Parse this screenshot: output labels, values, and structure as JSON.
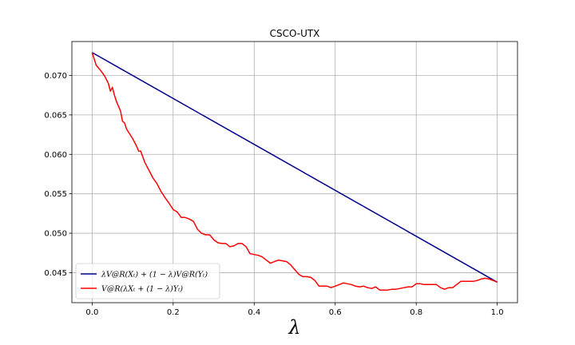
{
  "chart_data": {
    "type": "line",
    "title": "CSCO-UTX",
    "xlabel": "λ",
    "ylabel": "",
    "xlim": [
      -0.05,
      1.05
    ],
    "ylim": [
      0.0412,
      0.0743
    ],
    "xticks": [
      0.0,
      0.2,
      0.4,
      0.6,
      0.8,
      1.0
    ],
    "xtick_labels": [
      "0.0",
      "0.2",
      "0.4",
      "0.6",
      "0.8",
      "1.0"
    ],
    "yticks": [
      0.045,
      0.05,
      0.055,
      0.06,
      0.065,
      0.07
    ],
    "ytick_labels": [
      "0.045",
      "0.050",
      "0.055",
      "0.060",
      "0.065",
      "0.070"
    ],
    "grid": true,
    "legend_position": "lower-left",
    "series": [
      {
        "name": "λV@R(Xₜ) + (1 − λ)V@R(Yₜ)",
        "color": "#00008b",
        "x": [
          0.0,
          1.0
        ],
        "y": [
          0.0729,
          0.0438
        ]
      },
      {
        "name": "V@R(λXₜ + (1 − λ)Yₜ)",
        "color": "#ff0000",
        "x": [
          0.0,
          0.01,
          0.02,
          0.03,
          0.04,
          0.045,
          0.05,
          0.055,
          0.06,
          0.07,
          0.075,
          0.08,
          0.085,
          0.09,
          0.1,
          0.11,
          0.115,
          0.12,
          0.13,
          0.14,
          0.15,
          0.16,
          0.17,
          0.18,
          0.19,
          0.2,
          0.21,
          0.22,
          0.23,
          0.24,
          0.25,
          0.26,
          0.27,
          0.28,
          0.29,
          0.3,
          0.31,
          0.32,
          0.33,
          0.34,
          0.35,
          0.36,
          0.37,
          0.38,
          0.39,
          0.4,
          0.41,
          0.42,
          0.43,
          0.44,
          0.45,
          0.46,
          0.47,
          0.48,
          0.49,
          0.5,
          0.51,
          0.52,
          0.53,
          0.54,
          0.55,
          0.56,
          0.57,
          0.58,
          0.59,
          0.6,
          0.61,
          0.62,
          0.63,
          0.64,
          0.65,
          0.66,
          0.67,
          0.68,
          0.69,
          0.7,
          0.71,
          0.72,
          0.73,
          0.74,
          0.75,
          0.76,
          0.77,
          0.78,
          0.79,
          0.8,
          0.81,
          0.82,
          0.83,
          0.84,
          0.85,
          0.86,
          0.87,
          0.88,
          0.89,
          0.9,
          0.91,
          0.92,
          0.93,
          0.94,
          0.95,
          0.96,
          0.97,
          0.98,
          0.99,
          1.0
        ],
        "y": [
          0.0729,
          0.0713,
          0.0707,
          0.07,
          0.069,
          0.068,
          0.0685,
          0.0675,
          0.0667,
          0.0655,
          0.0642,
          0.064,
          0.0632,
          0.0628,
          0.062,
          0.061,
          0.0604,
          0.0604,
          0.059,
          0.058,
          0.057,
          0.0563,
          0.0553,
          0.0545,
          0.0538,
          0.053,
          0.0527,
          0.052,
          0.052,
          0.0518,
          0.0515,
          0.0505,
          0.05,
          0.0498,
          0.0498,
          0.0492,
          0.0488,
          0.0487,
          0.0487,
          0.0483,
          0.0484,
          0.0487,
          0.0487,
          0.0483,
          0.0474,
          0.0473,
          0.0472,
          0.047,
          0.0466,
          0.0462,
          0.0464,
          0.0466,
          0.0465,
          0.0464,
          0.046,
          0.0454,
          0.0448,
          0.0445,
          0.0445,
          0.0444,
          0.044,
          0.0433,
          0.0433,
          0.0433,
          0.0431,
          0.0433,
          0.0435,
          0.0437,
          0.0436,
          0.0435,
          0.0433,
          0.0432,
          0.0433,
          0.0431,
          0.043,
          0.0432,
          0.0428,
          0.0428,
          0.0428,
          0.0429,
          0.0429,
          0.043,
          0.0431,
          0.0432,
          0.0432,
          0.0436,
          0.0436,
          0.0435,
          0.0435,
          0.0435,
          0.0435,
          0.0431,
          0.0429,
          0.0431,
          0.0431,
          0.0435,
          0.0439,
          0.0439,
          0.0439,
          0.0439,
          0.044,
          0.0442,
          0.0443,
          0.0442,
          0.044,
          0.0438
        ]
      }
    ]
  }
}
